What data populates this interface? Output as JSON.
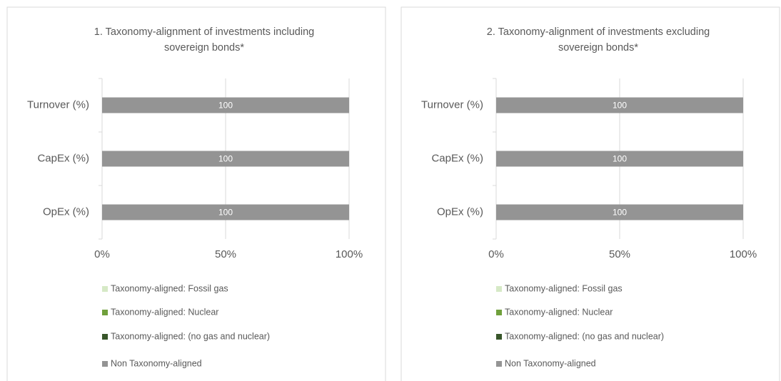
{
  "chart_data": [
    {
      "type": "bar",
      "orientation": "horizontal",
      "stacked": true,
      "title": [
        "1. Taxonomy-alignment of investments including",
        "sovereign bonds*"
      ],
      "categories": [
        "Turnover (%)",
        "CapEx (%)",
        "OpEx (%)"
      ],
      "series": [
        {
          "name": "Taxonomy-aligned: Fossil gas",
          "color": "#d6e9c6",
          "values": [
            0,
            0,
            0
          ]
        },
        {
          "name": "Taxonomy-aligned: Nuclear",
          "color": "#70a03c",
          "values": [
            0,
            0,
            0
          ]
        },
        {
          "name": "Taxonomy-aligned: (no gas and nuclear)",
          "color": "#38562a",
          "values": [
            0,
            0,
            0
          ]
        },
        {
          "name": "Non Taxonomy-aligned",
          "color": "#949494",
          "values": [
            100,
            100,
            100
          ]
        }
      ],
      "xlim": [
        0,
        100
      ],
      "xticks": [
        {
          "value": 0,
          "label": "0%"
        },
        {
          "value": 50,
          "label": "50%"
        },
        {
          "value": 100,
          "label": "100%"
        }
      ],
      "grid": true,
      "legend": "bottom"
    },
    {
      "type": "bar",
      "orientation": "horizontal",
      "stacked": true,
      "title": [
        "2. Taxonomy-alignment of investments excluding",
        "sovereign bonds*"
      ],
      "categories": [
        "Turnover (%)",
        "CapEx (%)",
        "OpEx (%)"
      ],
      "series": [
        {
          "name": "Taxonomy-aligned: Fossil gas",
          "color": "#d6e9c6",
          "values": [
            0,
            0,
            0
          ]
        },
        {
          "name": "Taxonomy-aligned: Nuclear",
          "color": "#70a03c",
          "values": [
            0,
            0,
            0
          ]
        },
        {
          "name": "Taxonomy-aligned: (no gas and nuclear)",
          "color": "#38562a",
          "values": [
            0,
            0,
            0
          ]
        },
        {
          "name": "Non Taxonomy-aligned",
          "color": "#949494",
          "values": [
            100,
            100,
            100
          ]
        }
      ],
      "xlim": [
        0,
        100
      ],
      "xticks": [
        {
          "value": 0,
          "label": "0%"
        },
        {
          "value": 50,
          "label": "50%"
        },
        {
          "value": 100,
          "label": "100%"
        }
      ],
      "grid": true,
      "legend": "bottom"
    }
  ]
}
